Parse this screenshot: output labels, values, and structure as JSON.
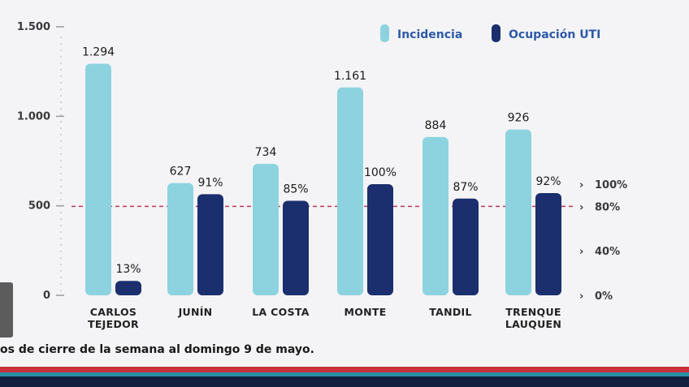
{
  "chart_data": {
    "type": "bar",
    "categories": [
      "CARLOS\nTEJEDOR",
      "JUNÍN",
      "LA COSTA",
      "MONTE",
      "TANDIL",
      "TRENQUE\nLAUQUEN"
    ],
    "series": [
      {
        "name": "Incidencia",
        "values": [
          1294,
          627,
          734,
          1161,
          884,
          926
        ],
        "labels": [
          "1.294",
          "627",
          "734",
          "1.161",
          "884",
          "926"
        ],
        "axis": "left",
        "color": "#8dd3df"
      },
      {
        "name": "Ocupación UTI",
        "values": [
          13,
          91,
          85,
          100,
          87,
          92
        ],
        "labels": [
          "13%",
          "91%",
          "85%",
          "100%",
          "87%",
          "92%"
        ],
        "axis": "right",
        "color": "#1b2f6e"
      }
    ],
    "left_axis": {
      "ticks": [
        0,
        500,
        1000,
        1500
      ],
      "tick_labels": [
        "0",
        "500",
        "1.000",
        "1.500"
      ],
      "ylim": [
        0,
        1500
      ]
    },
    "right_axis": {
      "ticks": [
        0,
        40,
        80,
        100
      ],
      "tick_labels": [
        "0%",
        "40%",
        "80%",
        "100%"
      ],
      "ylim": [
        0,
        100
      ]
    },
    "reference_line": {
      "value": 80,
      "axis": "right",
      "style": "dashed",
      "color": "#c0395a"
    },
    "legend_placement": "top-right",
    "grid": false
  },
  "caption": "os de cierre de la semana al domingo 9 de mayo.",
  "colors": {
    "background": "#f4f4f6",
    "stripe_red": "#c8323a",
    "stripe_teal": "#2a8fa6",
    "stripe_dark": "#12203f"
  }
}
